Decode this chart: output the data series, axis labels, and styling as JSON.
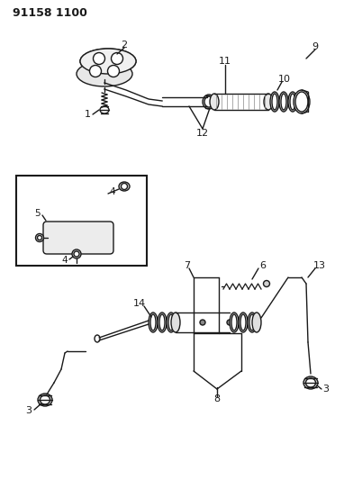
{
  "title": "91158 1100",
  "bg_color": "#ffffff",
  "line_color": "#1a1a1a",
  "figsize": [
    3.92,
    5.33
  ],
  "dpi": 100
}
